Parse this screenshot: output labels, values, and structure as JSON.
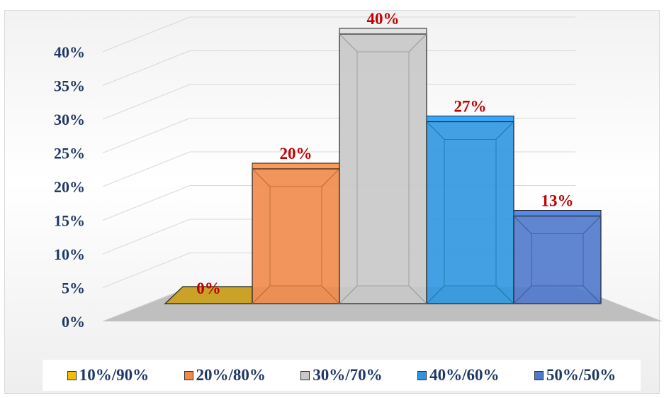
{
  "chart_data": {
    "type": "bar",
    "categories": [
      "10%/90%",
      "20%/80%",
      "30%/70%",
      "40%/60%",
      "50%/50%"
    ],
    "values": [
      0,
      20,
      40,
      27,
      13
    ],
    "data_labels": [
      "0%",
      "20%",
      "40%",
      "27%",
      "13%"
    ],
    "colors": [
      "#c9a227",
      "#f0894a",
      "#c8c8c8",
      "#2e96e0",
      "#4f79cc"
    ],
    "yticks": [
      "0%",
      "5%",
      "10%",
      "15%",
      "20%",
      "25%",
      "30%",
      "35%",
      "40%"
    ],
    "ylim": [
      0,
      40
    ],
    "three_d": true,
    "grid": true,
    "legend_position": "bottom",
    "title": "",
    "xlabel": "",
    "ylabel": ""
  },
  "legend": {
    "items": [
      {
        "label": "10%/90%",
        "color": "#f0c000"
      },
      {
        "label": "20%/80%",
        "color": "#f0894a"
      },
      {
        "label": "30%/70%",
        "color": "#c8c8c8"
      },
      {
        "label": "40%/60%",
        "color": "#2e96e0"
      },
      {
        "label": "50%/50%",
        "color": "#4f79cc"
      }
    ]
  }
}
